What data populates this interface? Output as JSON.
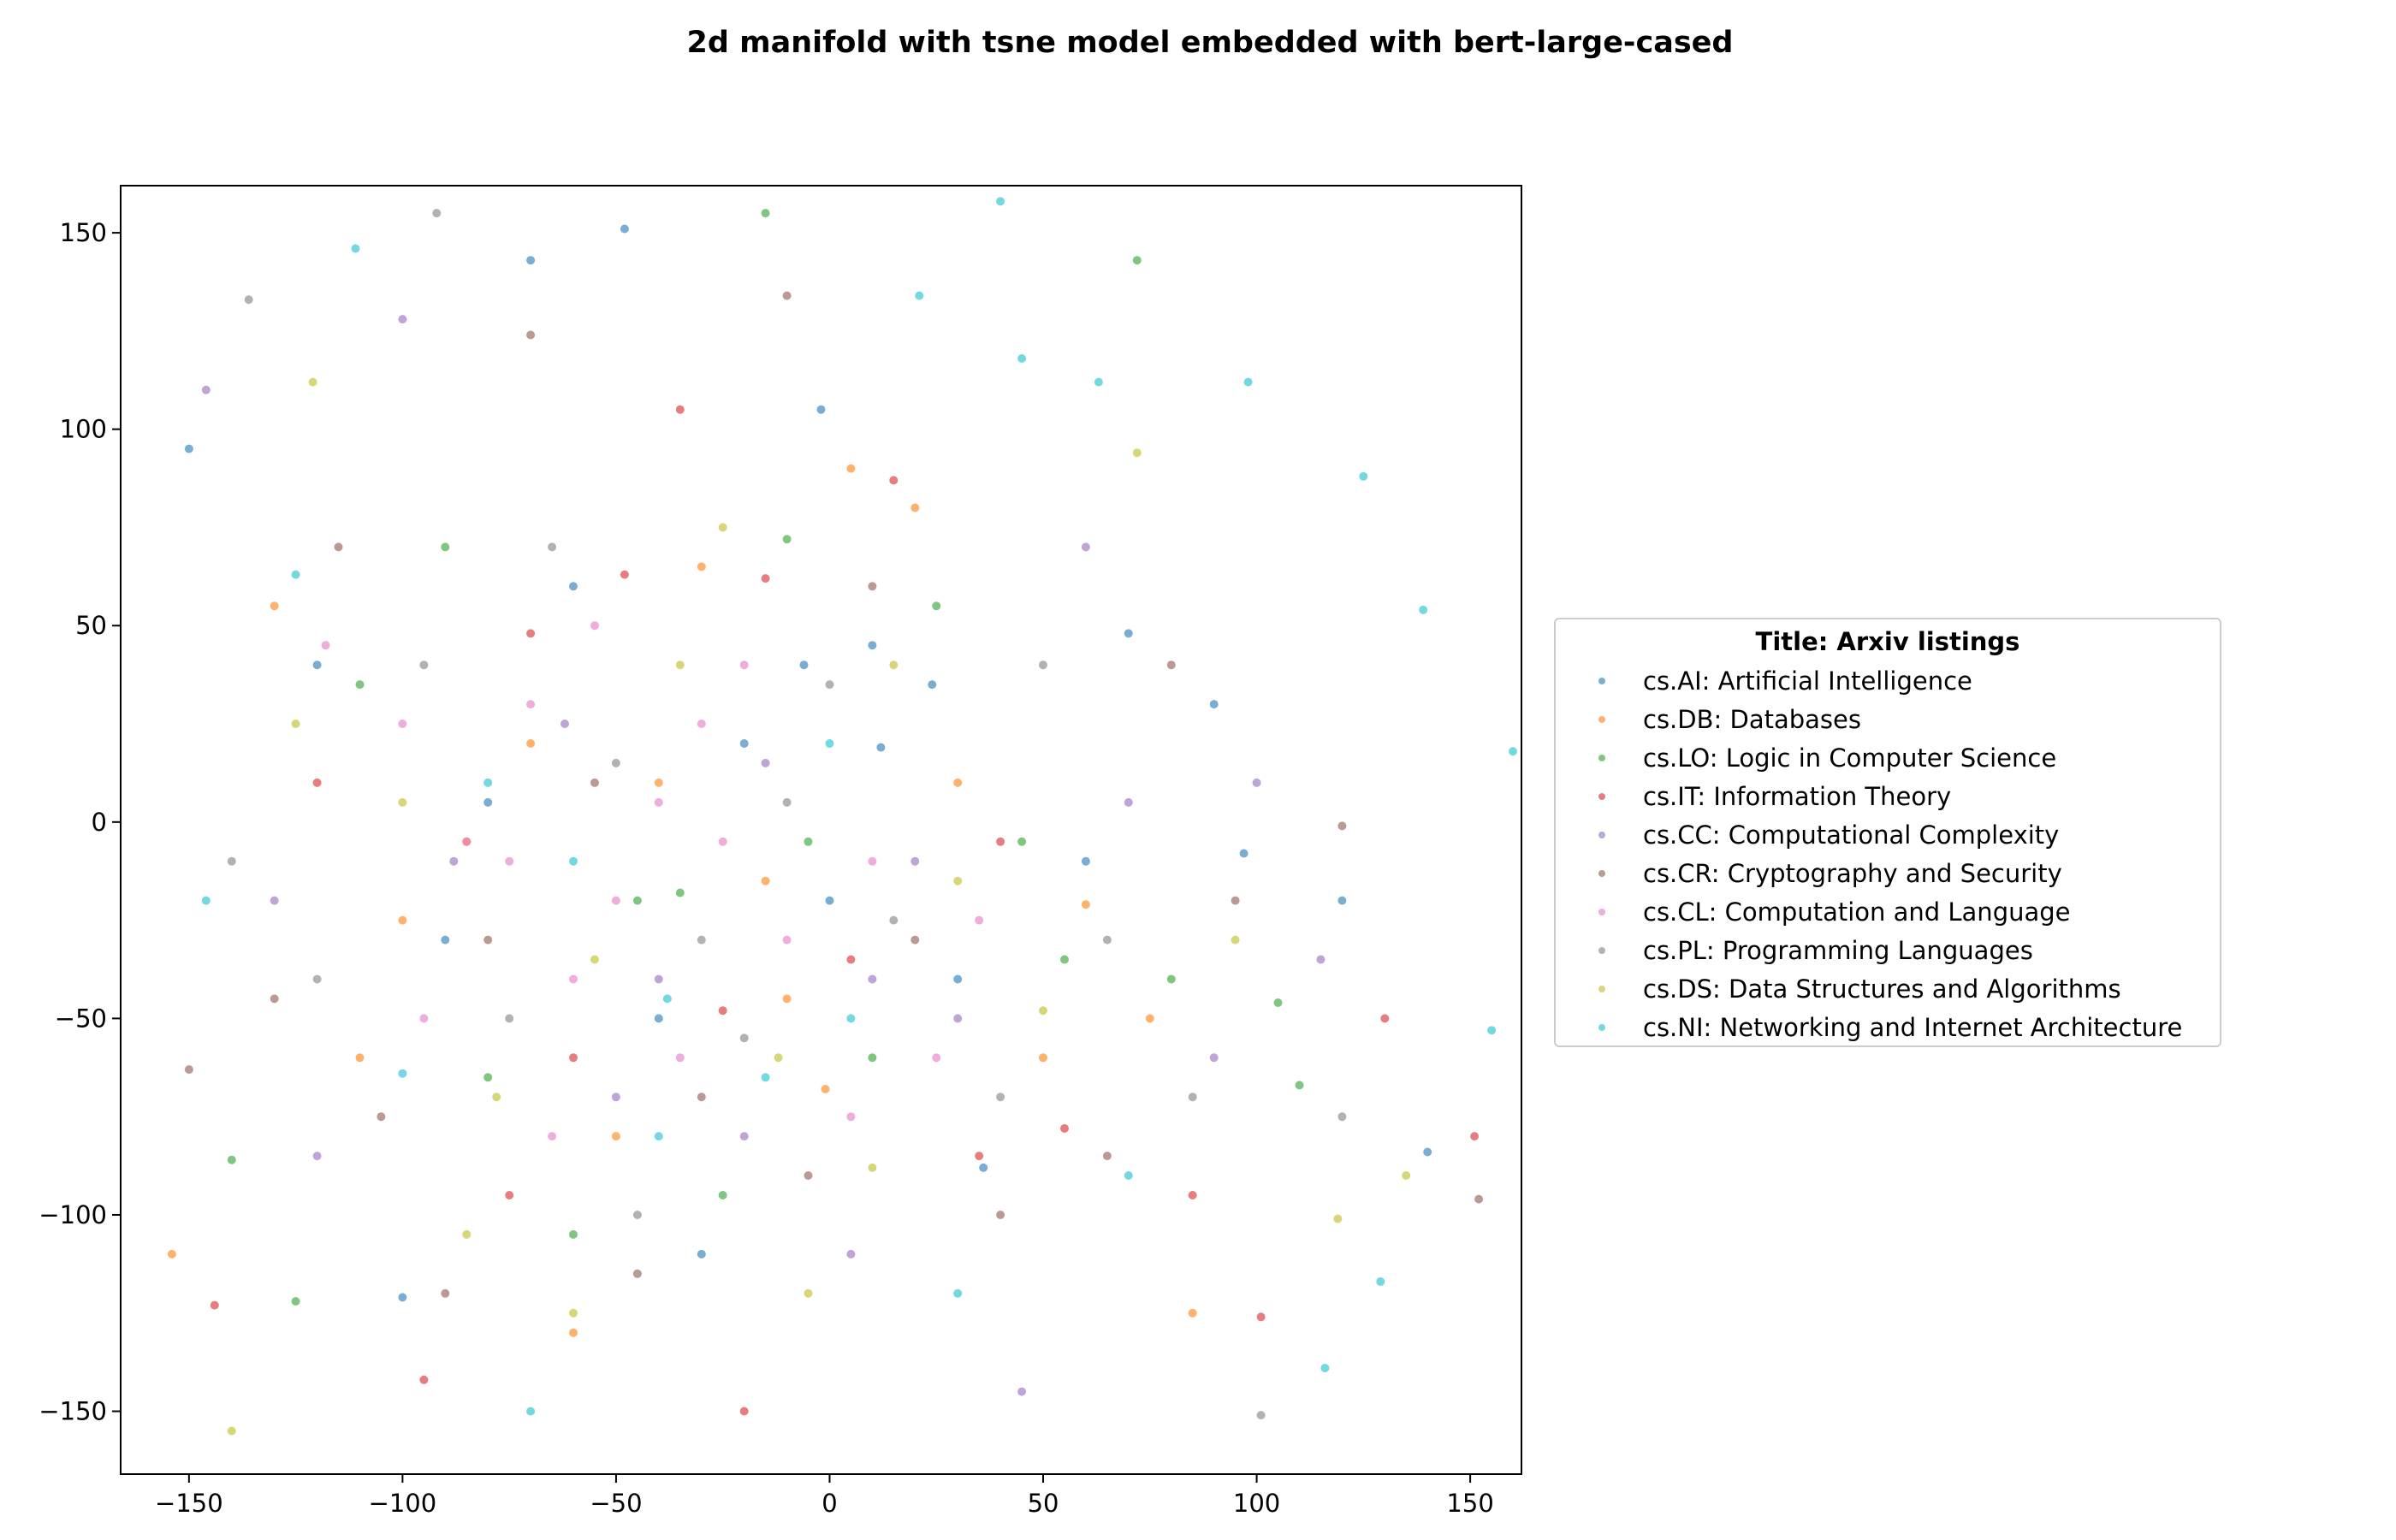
{
  "chart_data": {
    "type": "scatter",
    "title": "2d manifold with tsne model embedded with bert-large-cased",
    "xlabel": "",
    "ylabel": "",
    "xlim": [
      -166,
      162
    ],
    "ylim": [
      -166,
      162
    ],
    "xticks": [
      -150,
      -100,
      -50,
      0,
      50,
      100,
      150
    ],
    "yticks": [
      -150,
      -100,
      -50,
      0,
      50,
      100,
      150
    ],
    "xtick_labels": [
      "−150",
      "−100",
      "−50",
      "0",
      "50",
      "100",
      "150"
    ],
    "ytick_labels": [
      "−150",
      "−100",
      "−50",
      "0",
      "50",
      "100",
      "150"
    ],
    "grid": false,
    "legend": {
      "title": "Title: Arxiv listings",
      "placement": "outside-right"
    },
    "series": [
      {
        "name": "cs.AI: Artificial Intelligence",
        "color": "#1f77b4",
        "points": [
          [
            -150,
            95
          ],
          [
            -120,
            40
          ],
          [
            -90,
            -30
          ],
          [
            -60,
            60
          ],
          [
            -40,
            -50
          ],
          [
            -20,
            20
          ],
          [
            0,
            -20
          ],
          [
            10,
            45
          ],
          [
            30,
            -40
          ],
          [
            60,
            -10
          ],
          [
            90,
            30
          ],
          [
            120,
            -20
          ],
          [
            -70,
            143
          ],
          [
            -48,
            151
          ],
          [
            140,
            -84
          ],
          [
            -100,
            -121
          ],
          [
            12,
            19
          ],
          [
            24,
            35
          ],
          [
            -6,
            40
          ],
          [
            36,
            -88
          ],
          [
            -80,
            5
          ],
          [
            -30,
            -110
          ],
          [
            70,
            48
          ],
          [
            97,
            -8
          ],
          [
            -2,
            105
          ]
        ]
      },
      {
        "name": "cs.DB: Databases",
        "color": "#ff7f0e",
        "points": [
          [
            -130,
            55
          ],
          [
            -100,
            -25
          ],
          [
            -70,
            20
          ],
          [
            -50,
            -80
          ],
          [
            -30,
            65
          ],
          [
            -10,
            -45
          ],
          [
            -1,
            -68
          ],
          [
            20,
            80
          ],
          [
            50,
            -60
          ],
          [
            60,
            -21
          ],
          [
            85,
            -125
          ],
          [
            -154,
            -110
          ],
          [
            -85,
            -5
          ],
          [
            -15,
            -15
          ],
          [
            30,
            10
          ],
          [
            -60,
            -130
          ],
          [
            5,
            90
          ],
          [
            75,
            -50
          ],
          [
            -40,
            10
          ],
          [
            -110,
            -60
          ]
        ]
      },
      {
        "name": "cs.LO: Logic in Computer Science",
        "color": "#2ca02c",
        "points": [
          [
            -140,
            -86
          ],
          [
            -110,
            35
          ],
          [
            -80,
            -65
          ],
          [
            -60,
            -105
          ],
          [
            -35,
            -18
          ],
          [
            -10,
            72
          ],
          [
            10,
            -60
          ],
          [
            25,
            55
          ],
          [
            45,
            -5
          ],
          [
            80,
            -40
          ],
          [
            105,
            -46
          ],
          [
            -15,
            155
          ],
          [
            72,
            143
          ],
          [
            -125,
            -122
          ],
          [
            -45,
            -20
          ],
          [
            -5,
            -5
          ],
          [
            55,
            -35
          ],
          [
            -90,
            70
          ],
          [
            110,
            -67
          ],
          [
            -25,
            -95
          ]
        ]
      },
      {
        "name": "cs.IT: Information Theory",
        "color": "#d62728",
        "points": [
          [
            -144,
            -123
          ],
          [
            -120,
            10
          ],
          [
            -95,
            -142
          ],
          [
            -70,
            48
          ],
          [
            -48,
            63
          ],
          [
            -25,
            -48
          ],
          [
            -15,
            62
          ],
          [
            15,
            87
          ],
          [
            35,
            -85
          ],
          [
            55,
            -78
          ],
          [
            101,
            -126
          ],
          [
            151,
            -80
          ],
          [
            -60,
            -60
          ],
          [
            -20,
            -150
          ],
          [
            5,
            -35
          ],
          [
            -75,
            -95
          ],
          [
            40,
            -5
          ],
          [
            85,
            -95
          ],
          [
            -35,
            105
          ],
          [
            130,
            -50
          ]
        ]
      },
      {
        "name": "cs.CC: Computational Complexity",
        "color": "#9467bd",
        "points": [
          [
            -146,
            110
          ],
          [
            -120,
            -85
          ],
          [
            -88,
            -10
          ],
          [
            -62,
            25
          ],
          [
            -40,
            -40
          ],
          [
            -15,
            15
          ],
          [
            10,
            -40
          ],
          [
            30,
            -50
          ],
          [
            60,
            70
          ],
          [
            90,
            -60
          ],
          [
            115,
            -35
          ],
          [
            -100,
            128
          ],
          [
            -50,
            -70
          ],
          [
            20,
            -10
          ],
          [
            45,
            -145
          ],
          [
            -130,
            -20
          ],
          [
            70,
            5
          ],
          [
            -20,
            -80
          ],
          [
            5,
            -110
          ],
          [
            100,
            10
          ]
        ]
      },
      {
        "name": "cs.CR: Cryptography and Security",
        "color": "#8c564b",
        "points": [
          [
            -150,
            -63
          ],
          [
            -130,
            -45
          ],
          [
            -105,
            -75
          ],
          [
            -80,
            -30
          ],
          [
            -55,
            10
          ],
          [
            -30,
            -70
          ],
          [
            -5,
            -90
          ],
          [
            20,
            -30
          ],
          [
            40,
            -100
          ],
          [
            65,
            -85
          ],
          [
            95,
            -20
          ],
          [
            152,
            -96
          ],
          [
            -70,
            124
          ],
          [
            -10,
            134
          ],
          [
            120,
            -1
          ],
          [
            -115,
            70
          ],
          [
            -45,
            -115
          ],
          [
            10,
            60
          ],
          [
            80,
            40
          ],
          [
            -90,
            -120
          ]
        ]
      },
      {
        "name": "cs.CL: Computation and Language",
        "color": "#e377c2",
        "points": [
          [
            -118,
            45
          ],
          [
            -100,
            25
          ],
          [
            -85,
            -5
          ],
          [
            -70,
            30
          ],
          [
            -50,
            -20
          ],
          [
            -30,
            25
          ],
          [
            -10,
            -30
          ],
          [
            5,
            -75
          ],
          [
            25,
            -60
          ],
          [
            -60,
            -40
          ],
          [
            -40,
            5
          ],
          [
            -20,
            40
          ],
          [
            -95,
            -50
          ],
          [
            -75,
            -10
          ],
          [
            -55,
            50
          ],
          [
            10,
            -10
          ],
          [
            -35,
            -60
          ],
          [
            -65,
            -80
          ],
          [
            35,
            -25
          ],
          [
            -25,
            -5
          ]
        ]
      },
      {
        "name": "cs.PL: Programming Languages",
        "color": "#7f7f7f",
        "points": [
          [
            -136,
            133
          ],
          [
            -120,
            -40
          ],
          [
            -95,
            40
          ],
          [
            -75,
            -50
          ],
          [
            -50,
            15
          ],
          [
            -30,
            -30
          ],
          [
            -10,
            5
          ],
          [
            15,
            -25
          ],
          [
            40,
            -70
          ],
          [
            65,
            -30
          ],
          [
            101,
            -151
          ],
          [
            -92,
            155
          ],
          [
            -65,
            70
          ],
          [
            -140,
            -10
          ],
          [
            -20,
            -55
          ],
          [
            0,
            35
          ],
          [
            50,
            40
          ],
          [
            85,
            -70
          ],
          [
            -45,
            -100
          ],
          [
            120,
            -75
          ]
        ]
      },
      {
        "name": "cs.DS: Data Structures and Algorithms",
        "color": "#bcbd22",
        "points": [
          [
            -140,
            -155
          ],
          [
            -121,
            112
          ],
          [
            -100,
            5
          ],
          [
            -78,
            -70
          ],
          [
            -55,
            -35
          ],
          [
            -35,
            40
          ],
          [
            -12,
            -60
          ],
          [
            10,
            -88
          ],
          [
            30,
            -15
          ],
          [
            50,
            -48
          ],
          [
            72,
            94
          ],
          [
            119,
            -101
          ],
          [
            -125,
            25
          ],
          [
            -60,
            -125
          ],
          [
            -25,
            75
          ],
          [
            15,
            40
          ],
          [
            95,
            -30
          ],
          [
            -85,
            -105
          ],
          [
            -5,
            -120
          ],
          [
            135,
            -90
          ]
        ]
      },
      {
        "name": "cs.NI: Networking and Internet Architecture",
        "color": "#17becf",
        "points": [
          [
            -146,
            -20
          ],
          [
            -125,
            63
          ],
          [
            -100,
            -64
          ],
          [
            -80,
            10
          ],
          [
            -60,
            -10
          ],
          [
            -38,
            -45
          ],
          [
            -15,
            -65
          ],
          [
            5,
            -50
          ],
          [
            21,
            134
          ],
          [
            45,
            118
          ],
          [
            63,
            112
          ],
          [
            98,
            112
          ],
          [
            125,
            88
          ],
          [
            139,
            54
          ],
          [
            155,
            -53
          ],
          [
            160,
            18
          ],
          [
            116,
            -139
          ],
          [
            129,
            -117
          ],
          [
            40,
            158
          ],
          [
            -111,
            146
          ],
          [
            -40,
            -80
          ],
          [
            0,
            20
          ],
          [
            30,
            -120
          ],
          [
            70,
            -90
          ],
          [
            -70,
            -150
          ]
        ]
      }
    ]
  }
}
